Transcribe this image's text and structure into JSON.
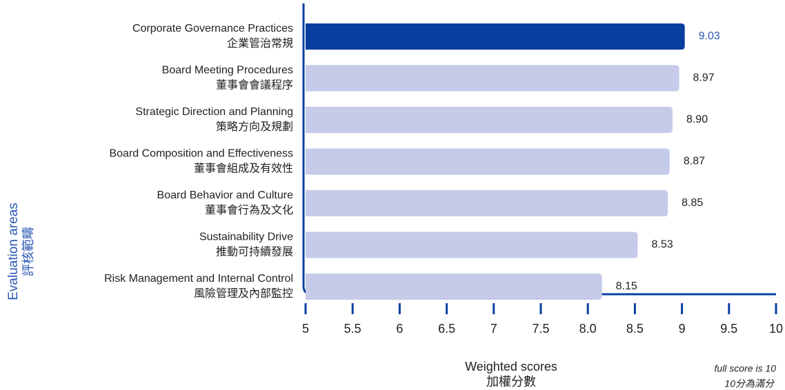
{
  "chart_data": {
    "type": "bar",
    "orientation": "horizontal",
    "categories": [
      "Corporate Governance Practices",
      "Board Meeting Procedures",
      "Strategic Direction and Planning",
      "Board Composition and Effectiveness",
      "Board Behavior and Culture",
      "Sustainability Drive",
      "Risk Management and Internal Control"
    ],
    "categories_zh": [
      "企業管治常規",
      "董事會會議程序",
      "策略方向及規劃",
      "董事會組成及有效性",
      "董事會行為及文化",
      "推動可持續發展",
      "風險管理及內部監控"
    ],
    "values": [
      9.03,
      8.97,
      8.9,
      8.87,
      8.85,
      8.53,
      8.15
    ],
    "value_labels": [
      "9.03",
      "8.97",
      "8.90",
      "8.87",
      "8.85",
      "8.53",
      "8.15"
    ],
    "colors": [
      "#0a3fa0",
      "#c5cbe8",
      "#c5cbe8",
      "#c5cbe8",
      "#c5cbe8",
      "#c5cbe8",
      "#c5cbe8"
    ],
    "xlim": [
      5,
      10
    ],
    "xticks": [
      5,
      5.5,
      6,
      6.5,
      7,
      7.5,
      {
        "value": 8,
        "label": "8.0"
      },
      8.5,
      9,
      9.5,
      10
    ],
    "xlabel": "Weighted scores",
    "xlabel_zh": "加權分數",
    "ylabel": "Evaluation areas",
    "ylabel_zh": "評核範疇",
    "note": "full score is 10",
    "note_zh": "10分為滿分"
  }
}
